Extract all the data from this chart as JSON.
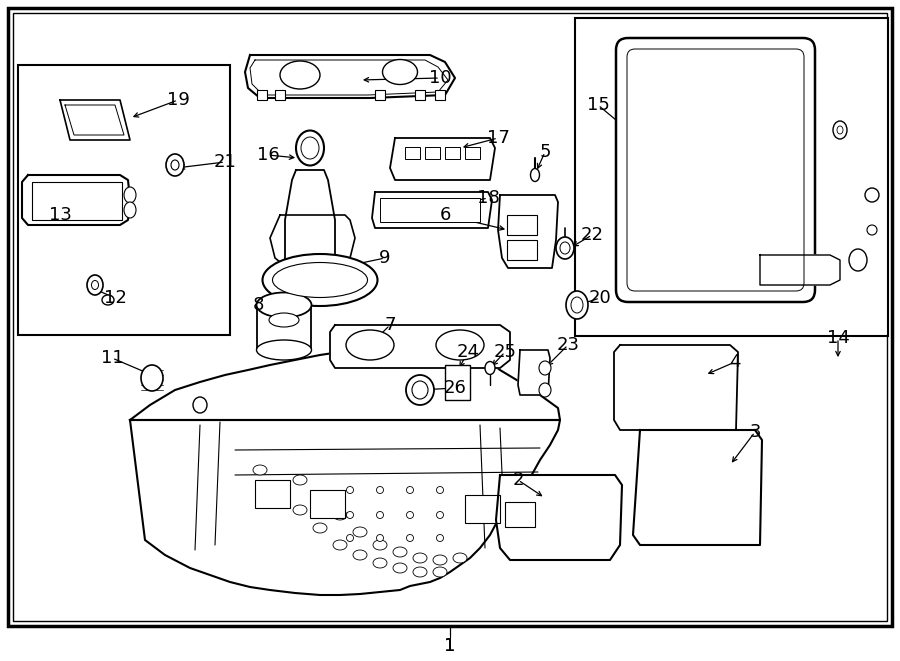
{
  "bg_color": "#ffffff",
  "border_color": "#000000",
  "fig_width": 9.0,
  "fig_height": 6.61,
  "dpi": 100,
  "text_color": "#000000",
  "fontsize": 11,
  "label_fontsize": 13
}
